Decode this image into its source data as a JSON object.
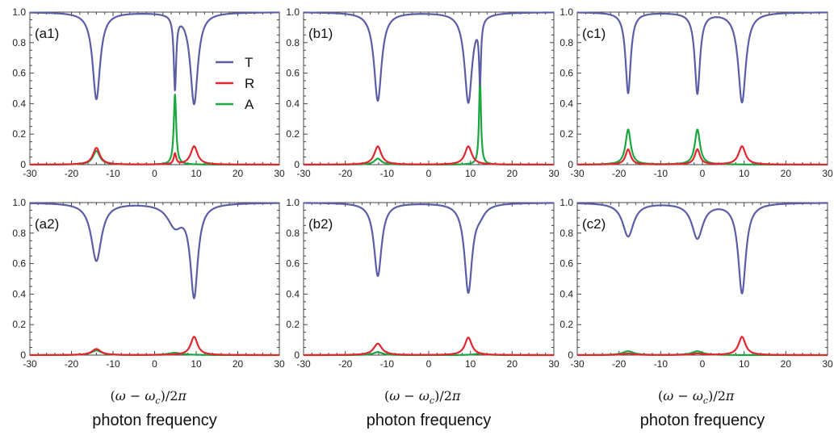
{
  "colors": {
    "T": "#5b5ea6",
    "R": "#e3262d",
    "A": "#1aa640"
  },
  "legend": [
    {
      "key": "T",
      "label": "T"
    },
    {
      "key": "R",
      "label": "R"
    },
    {
      "key": "A",
      "label": "A"
    }
  ],
  "xlabel_formula": "(ω − ωc)/2π",
  "xlabel_text": "photon frequency",
  "chart_data": [
    {
      "type": "line",
      "label": "(a1)",
      "xlim": [
        -30,
        30
      ],
      "ylim": [
        0,
        1
      ],
      "xticks": [
        "-30",
        "-20",
        "-10",
        "0",
        "10",
        "20",
        "30"
      ],
      "yticks": [
        "0",
        "0.2",
        "0.4",
        "0.6",
        "0.8",
        "1.0"
      ],
      "legend": true,
      "series": [
        {
          "key": "T",
          "dips": [
            {
              "x": -14,
              "min": 0.43,
              "w": 1.1
            },
            {
              "x": 4.9,
              "min": 0.52,
              "w": 0.35,
              "sharp": true
            },
            {
              "x": 9.5,
              "min": 0.4,
              "w": 1.1
            }
          ],
          "bump": {
            "x": 6.5,
            "shape": "broad",
            "base": 0.86
          }
        },
        {
          "key": "R",
          "peaks": [
            {
              "x": -14,
              "y": 0.11,
              "w": 1.0
            },
            {
              "x": 4.9,
              "y": 0.07,
              "w": 0.35
            },
            {
              "x": 9.5,
              "y": 0.12,
              "w": 1.0
            }
          ]
        },
        {
          "key": "A",
          "peaks": [
            {
              "x": -14,
              "y": 0.09,
              "w": 1.0
            },
            {
              "x": 4.9,
              "y": 0.46,
              "w": 0.35
            }
          ]
        }
      ]
    },
    {
      "type": "line",
      "label": "(b1)",
      "xlim": [
        -30,
        30
      ],
      "ylim": [
        0,
        1
      ],
      "xticks": [
        "-30",
        "-20",
        "-10",
        "0",
        "10",
        "20",
        "30"
      ],
      "yticks": [
        "0",
        "0.2",
        "0.4",
        "0.6",
        "0.8",
        "1.0"
      ],
      "legend": false,
      "series": [
        {
          "key": "T",
          "dips": [
            {
              "x": -12.2,
              "min": 0.42,
              "w": 1.1
            },
            {
              "x": 9.5,
              "min": 0.41,
              "w": 1.1
            },
            {
              "x": 12.3,
              "min": 0.6,
              "w": 0.28,
              "sharp": true
            }
          ]
        },
        {
          "key": "R",
          "peaks": [
            {
              "x": -12.2,
              "y": 0.12,
              "w": 1.0
            },
            {
              "x": 9.5,
              "y": 0.12,
              "w": 1.0
            }
          ]
        },
        {
          "key": "A",
          "peaks": [
            {
              "x": -12.2,
              "y": 0.04,
              "w": 1.0
            },
            {
              "x": 12.3,
              "y": 0.57,
              "w": 0.28
            }
          ]
        }
      ]
    },
    {
      "type": "line",
      "label": "(c1)",
      "xlim": [
        -30,
        30
      ],
      "ylim": [
        0,
        1
      ],
      "xticks": [
        "-30",
        "-20",
        "-10",
        "0",
        "10",
        "20",
        "30"
      ],
      "yticks": [
        "0",
        "0.2",
        "0.4",
        "0.6",
        "0.8",
        "1.0"
      ],
      "legend": false,
      "series": [
        {
          "key": "T",
          "dips": [
            {
              "x": -17.8,
              "min": 0.47,
              "w": 0.75
            },
            {
              "x": -1.2,
              "min": 0.47,
              "w": 0.75
            },
            {
              "x": 9.5,
              "min": 0.41,
              "w": 1.1
            }
          ]
        },
        {
          "key": "R",
          "peaks": [
            {
              "x": -17.8,
              "y": 0.1,
              "w": 0.75
            },
            {
              "x": -1.2,
              "y": 0.1,
              "w": 0.75
            },
            {
              "x": 9.5,
              "y": 0.12,
              "w": 1.0
            }
          ]
        },
        {
          "key": "A",
          "peaks": [
            {
              "x": -17.8,
              "y": 0.23,
              "w": 0.75
            },
            {
              "x": -1.2,
              "y": 0.23,
              "w": 0.75
            }
          ]
        }
      ]
    },
    {
      "type": "line",
      "label": "(a2)",
      "xlim": [
        -30,
        30
      ],
      "ylim": [
        0,
        1
      ],
      "xticks": [
        "-30",
        "-20",
        "-10",
        "0",
        "10",
        "20",
        "30"
      ],
      "yticks": [
        "0",
        "0.2",
        "0.4",
        "0.6",
        "0.8",
        "1.0"
      ],
      "legend": false,
      "series": [
        {
          "key": "T",
          "dips": [
            {
              "x": -14,
              "min": 0.62,
              "w": 1.5
            },
            {
              "x": 4.9,
              "min": 0.86,
              "w": 2.2
            },
            {
              "x": 9.5,
              "min": 0.4,
              "w": 1.1
            }
          ]
        },
        {
          "key": "R",
          "peaks": [
            {
              "x": -14,
              "y": 0.04,
              "w": 1.3
            },
            {
              "x": 9.5,
              "y": 0.12,
              "w": 1.0
            }
          ]
        },
        {
          "key": "A",
          "peaks": [
            {
              "x": -14,
              "y": 0.03,
              "w": 1.5
            },
            {
              "x": 4.9,
              "y": 0.015,
              "w": 2.0
            }
          ]
        }
      ]
    },
    {
      "type": "line",
      "label": "(b2)",
      "xlim": [
        -30,
        30
      ],
      "ylim": [
        0,
        1
      ],
      "xticks": [
        "-30",
        "-20",
        "-10",
        "0",
        "10",
        "20",
        "30"
      ],
      "yticks": [
        "0",
        "0.2",
        "0.4",
        "0.6",
        "0.8",
        "1.0"
      ],
      "legend": false,
      "series": [
        {
          "key": "T",
          "dips": [
            {
              "x": -12.2,
              "min": 0.52,
              "w": 1.1
            },
            {
              "x": 9.5,
              "min": 0.42,
              "w": 1.1
            },
            {
              "x": 12.3,
              "min": 0.95,
              "w": 1.5
            }
          ]
        },
        {
          "key": "R",
          "peaks": [
            {
              "x": -12.2,
              "y": 0.075,
              "w": 1.2
            },
            {
              "x": 9.5,
              "y": 0.115,
              "w": 1.0
            }
          ]
        },
        {
          "key": "A",
          "peaks": [
            {
              "x": -12.2,
              "y": 0.02,
              "w": 1.2
            },
            {
              "x": 12.3,
              "y": 0.01,
              "w": 1.5
            }
          ]
        }
      ]
    },
    {
      "type": "line",
      "label": "(c2)",
      "xlim": [
        -30,
        30
      ],
      "ylim": [
        0,
        1
      ],
      "xticks": [
        "-30",
        "-20",
        "-10",
        "0",
        "10",
        "20",
        "30"
      ],
      "yticks": [
        "0",
        "0.2",
        "0.4",
        "0.6",
        "0.8",
        "1.0"
      ],
      "legend": false,
      "series": [
        {
          "key": "T",
          "dips": [
            {
              "x": -17.8,
              "min": 0.78,
              "w": 1.6
            },
            {
              "x": -1.2,
              "min": 0.77,
              "w": 1.6
            },
            {
              "x": 9.5,
              "min": 0.41,
              "w": 1.1
            }
          ]
        },
        {
          "key": "R",
          "peaks": [
            {
              "x": -17.8,
              "y": 0.01,
              "w": 1.6
            },
            {
              "x": -1.2,
              "y": 0.01,
              "w": 1.6
            },
            {
              "x": 9.5,
              "y": 0.12,
              "w": 1.0
            }
          ]
        },
        {
          "key": "A",
          "peaks": [
            {
              "x": -17.8,
              "y": 0.025,
              "w": 1.6
            },
            {
              "x": -1.2,
              "y": 0.025,
              "w": 1.6
            }
          ]
        }
      ]
    }
  ]
}
